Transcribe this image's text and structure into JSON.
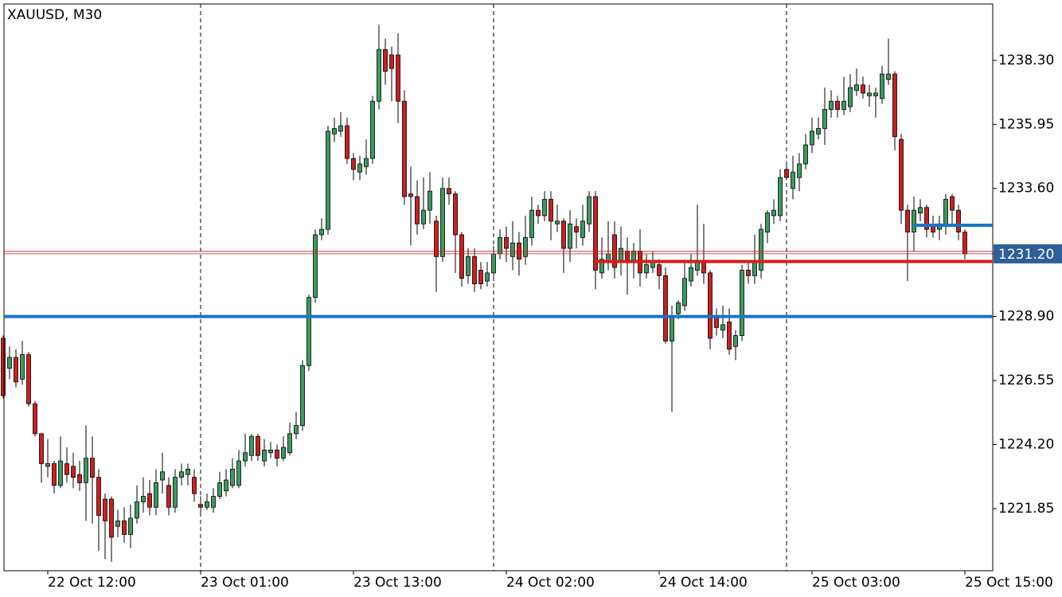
{
  "chart_data": {
    "type": "candlestick",
    "title": "XAUUSD, M30",
    "up_color": "#3c9a5f",
    "down_color": "#cc1f1f",
    "categories": [
      null,
      null,
      null,
      null,
      null,
      null,
      null,
      "22 Oct 12:00",
      null,
      null,
      null,
      null,
      null,
      null,
      null,
      null,
      null,
      null,
      null,
      null,
      null,
      null,
      null,
      null,
      null,
      null,
      null,
      null,
      null,
      null,
      null,
      "23 Oct 01:00",
      null,
      null,
      null,
      null,
      null,
      null,
      null,
      null,
      null,
      null,
      null,
      null,
      null,
      null,
      null,
      null,
      null,
      null,
      null,
      null,
      null,
      null,
      null,
      "23 Oct 13:00",
      null,
      null,
      null,
      null,
      null,
      null,
      null,
      null,
      null,
      null,
      null,
      null,
      null,
      null,
      null,
      null,
      null,
      null,
      null,
      null,
      null,
      null,
      null,
      "24 Oct 02:00",
      null,
      null,
      null,
      null,
      null,
      null,
      null,
      null,
      null,
      null,
      null,
      null,
      null,
      null,
      null,
      null,
      null,
      null,
      null,
      null,
      null,
      null,
      null,
      "24 Oct 14:00",
      null,
      null,
      null,
      null,
      null,
      null,
      null,
      null,
      null,
      null,
      null,
      null,
      null,
      null,
      null,
      null,
      null,
      null,
      null,
      null,
      null,
      null,
      null,
      "25 Oct 03:00",
      null,
      null,
      null,
      null,
      null,
      null,
      null,
      null,
      null,
      null,
      null,
      null,
      null,
      null,
      null,
      null,
      null,
      null,
      null,
      null,
      null,
      null,
      null,
      "25 Oct 15:00"
    ],
    "open": [
      1228.1,
      1227.0,
      1227.4,
      1226.6,
      1227.5,
      1225.7,
      1224.6,
      1223.4,
      1223.5,
      1222.7,
      1223.5,
      1223.4,
      1223.1,
      1222.8,
      1223.7,
      1223.0,
      1222.2,
      1222.2,
      1221.2,
      1221.4,
      1220.9,
      1221.5,
      1222.1,
      1222.4,
      1221.9,
      1222.9,
      1222.7,
      1221.9,
      1223.0,
      1223.1,
      1223.0,
      1222.0,
      1221.9,
      1221.9,
      1222.3,
      1222.5,
      1222.7,
      1222.7,
      1223.6,
      1223.8,
      1224.5,
      1223.6,
      1223.9,
      1224.0,
      1223.7,
      1223.9,
      1224.6,
      1224.9,
      1227.1,
      1229.6,
      1231.9,
      1232.1,
      1235.6,
      1235.7,
      1235.9,
      1234.7,
      1234.2,
      1234.4,
      1234.7,
      1236.8,
      1238.7,
      1238.5,
      1238.5,
      1236.8,
      1233.4,
      1233.3,
      1232.3,
      1232.8,
      1232.4,
      1231.1,
      1233.6,
      1233.4,
      1231.9,
      1230.4,
      1231.1,
      1230.6,
      1230.2,
      1230.5,
      1231.2,
      1231.8,
      1231.1,
      1231.6,
      1231.1,
      1231.8,
      1232.8,
      1232.6,
      1233.2,
      1232.3,
      1232.4,
      1231.4,
      1232.2,
      1231.8,
      1232.3,
      1233.3,
      1230.5,
      1230.9,
      1231.9,
      1230.9,
      1231.3,
      1230.9,
      1231.3,
      1230.5,
      1230.7,
      1230.8,
      1230.4,
      1228.0,
      1229.0,
      1229.3,
      1230.2,
      1230.6,
      1230.9,
      1230.5,
      1228.9,
      1228.4,
      1228.7,
      1227.8,
      1228.2,
      1230.6,
      1230.4,
      1230.6,
      1232.0,
      1232.6,
      1232.6,
      1234.3,
      1233.6,
      1234.0,
      1234.5,
      1235.2,
      1235.6,
      1235.8,
      1236.5,
      1236.8,
      1236.5,
      1236.6,
      1237.2,
      1237.4,
      1237.0,
      1237.0,
      1236.9,
      1237.6,
      1237.8,
      1235.4,
      1232.8,
      1232.0,
      1232.7,
      1232.9,
      1232.2,
      1232.1,
      1232.3,
      1233.3,
      1232.8,
      1232.0
    ],
    "high": [
      1228.2,
      1227.8,
      1227.7,
      1228.0,
      1227.6,
      1225.8,
      1224.6,
      1224.4,
      1223.6,
      1224.5,
      1224.1,
      1223.9,
      1223.6,
      1224.9,
      1224.5,
      1223.3,
      1222.4,
      1222.3,
      1221.8,
      1221.9,
      1222.0,
      1222.7,
      1223.0,
      1222.9,
      1223.3,
      1223.9,
      1223.0,
      1223.3,
      1223.5,
      1223.5,
      1223.3,
      1222.3,
      1222.4,
      1222.6,
      1223.2,
      1223.3,
      1223.7,
      1224.0,
      1224.6,
      1224.6,
      1224.6,
      1224.4,
      1224.3,
      1224.2,
      1224.5,
      1225.0,
      1225.4,
      1227.3,
      1229.7,
      1232.1,
      1232.5,
      1235.9,
      1236.2,
      1236.4,
      1236.2,
      1234.9,
      1234.8,
      1235.4,
      1237.0,
      1239.6,
      1239.1,
      1238.8,
      1239.3,
      1237.2,
      1234.4,
      1233.9,
      1234.0,
      1234.2,
      1232.6,
      1234.0,
      1234.0,
      1233.5,
      1232.0,
      1231.4,
      1231.4,
      1230.9,
      1230.9,
      1231.5,
      1232.1,
      1232.2,
      1232.4,
      1232.0,
      1232.6,
      1233.3,
      1233.0,
      1233.5,
      1233.5,
      1233.0,
      1232.5,
      1232.8,
      1232.5,
      1233.0,
      1233.5,
      1233.5,
      1231.8,
      1232.4,
      1232.4,
      1232.2,
      1231.8,
      1231.6,
      1232.1,
      1231.2,
      1231.3,
      1231.0,
      1230.7,
      1229.3,
      1229.5,
      1230.9,
      1231.2,
      1233.0,
      1232.3,
      1230.6,
      1229.2,
      1229.3,
      1229.2,
      1228.4,
      1230.8,
      1230.9,
      1231.9,
      1232.3,
      1232.8,
      1233.2,
      1234.3,
      1234.6,
      1234.8,
      1234.9,
      1235.6,
      1236.2,
      1236.2,
      1237.3,
      1237.2,
      1237.0,
      1237.7,
      1237.8,
      1238.0,
      1237.7,
      1237.4,
      1237.3,
      1238.1,
      1239.1,
      1237.9,
      1235.6,
      1233.0,
      1233.3,
      1233.2,
      1233.0,
      1232.6,
      1232.6,
      1233.4,
      1233.4,
      1233.0,
      1232.1
    ],
    "low": [
      1225.9,
      1226.6,
      1226.3,
      1226.4,
      1225.6,
      1224.5,
      1222.8,
      1223.0,
      1222.4,
      1222.6,
      1222.8,
      1222.6,
      1222.5,
      1221.4,
      1221.3,
      1220.3,
      1220.0,
      1219.9,
      1220.8,
      1220.6,
      1220.4,
      1221.3,
      1221.7,
      1221.6,
      1221.6,
      1222.4,
      1221.6,
      1221.7,
      1222.7,
      1222.7,
      1222.1,
      1221.6,
      1221.8,
      1221.7,
      1222.2,
      1222.3,
      1222.6,
      1222.6,
      1223.4,
      1223.6,
      1223.6,
      1223.4,
      1223.7,
      1223.4,
      1223.6,
      1223.8,
      1224.4,
      1224.7,
      1226.9,
      1229.4,
      1231.7,
      1231.9,
      1235.3,
      1235.5,
      1234.5,
      1233.9,
      1233.9,
      1234.1,
      1234.5,
      1236.5,
      1237.4,
      1236.8,
      1236.0,
      1233.0,
      1231.5,
      1231.9,
      1232.1,
      1232.3,
      1229.8,
      1230.9,
      1233.0,
      1230.5,
      1230.0,
      1230.1,
      1229.8,
      1229.9,
      1230.0,
      1230.2,
      1231.0,
      1230.9,
      1230.6,
      1230.4,
      1230.8,
      1231.5,
      1232.3,
      1232.4,
      1231.7,
      1232.0,
      1230.5,
      1230.9,
      1231.4,
      1231.5,
      1232.0,
      1229.9,
      1230.3,
      1230.6,
      1230.3,
      1230.4,
      1229.7,
      1230.3,
      1230.0,
      1230.3,
      1230.5,
      1229.9,
      1227.9,
      1225.4,
      1228.8,
      1229.1,
      1230.0,
      1230.4,
      1230.1,
      1227.7,
      1228.2,
      1228.1,
      1227.5,
      1227.3,
      1228.0,
      1230.1,
      1230.1,
      1230.3,
      1231.6,
      1232.3,
      1232.4,
      1233.9,
      1233.2,
      1233.5,
      1234.3,
      1234.9,
      1235.4,
      1235.2,
      1236.2,
      1236.2,
      1236.3,
      1236.4,
      1237.0,
      1236.9,
      1236.6,
      1236.2,
      1236.7,
      1237.4,
      1235.0,
      1232.3,
      1230.2,
      1231.3,
      1232.4,
      1231.8,
      1231.8,
      1231.7,
      1231.9,
      1232.3,
      1231.7,
      1231.0
    ],
    "close": [
      1226.0,
      1227.4,
      1226.5,
      1227.5,
      1225.7,
      1224.6,
      1223.5,
      1223.5,
      1222.7,
      1223.6,
      1223.1,
      1223.0,
      1222.8,
      1223.7,
      1223.0,
      1221.6,
      1221.4,
      1220.8,
      1221.4,
      1220.9,
      1221.5,
      1222.1,
      1222.3,
      1221.9,
      1222.8,
      1223.2,
      1221.9,
      1223.0,
      1223.2,
      1223.3,
      1222.4,
      1221.9,
      1222.1,
      1222.3,
      1222.8,
      1222.9,
      1223.3,
      1223.6,
      1223.9,
      1224.5,
      1223.8,
      1224.0,
      1224.0,
      1223.7,
      1224.1,
      1224.6,
      1224.9,
      1227.1,
      1229.6,
      1231.9,
      1232.1,
      1235.7,
      1235.8,
      1235.9,
      1234.7,
      1234.3,
      1234.5,
      1234.7,
      1236.8,
      1238.7,
      1237.9,
      1238.0,
      1236.8,
      1233.3,
      1233.3,
      1232.3,
      1232.8,
      1233.5,
      1231.1,
      1233.6,
      1233.4,
      1231.9,
      1230.3,
      1231.1,
      1230.1,
      1230.1,
      1230.5,
      1231.2,
      1231.8,
      1231.4,
      1231.6,
      1231.0,
      1231.8,
      1232.8,
      1232.6,
      1233.2,
      1232.4,
      1232.4,
      1231.4,
      1232.3,
      1232.0,
      1232.4,
      1233.3,
      1230.6,
      1231.0,
      1231.2,
      1230.7,
      1231.4,
      1230.9,
      1231.3,
      1230.5,
      1230.8,
      1230.9,
      1230.4,
      1228.0,
      1228.9,
      1229.4,
      1230.3,
      1230.7,
      1230.9,
      1230.5,
      1228.1,
      1228.5,
      1228.6,
      1227.7,
      1228.2,
      1230.6,
      1230.4,
      1230.9,
      1232.1,
      1232.7,
      1232.8,
      1234.0,
      1234.0,
      1234.2,
      1234.5,
      1235.2,
      1235.7,
      1235.8,
      1236.5,
      1236.8,
      1236.5,
      1236.8,
      1237.3,
      1237.4,
      1237.1,
      1237.1,
      1237.1,
      1237.8,
      1237.8,
      1235.5,
      1232.8,
      1232.0,
      1232.8,
      1232.9,
      1232.1,
      1232.0,
      1232.3,
      1233.2,
      1232.8,
      1232.0,
      1231.2
    ],
    "ylim": [
      1219.57,
      1240.37
    ],
    "yticks": [
      {
        "value": 1221.85,
        "label": "1221.85"
      },
      {
        "value": 1224.2,
        "label": "1224.20"
      },
      {
        "value": 1226.55,
        "label": "1226.55"
      },
      {
        "value": 1228.9,
        "label": "1228.90"
      },
      {
        "value": 1231.2,
        "label": "1231.20"
      },
      {
        "value": 1233.6,
        "label": "1233.60"
      },
      {
        "value": 1235.95,
        "label": "1235.95"
      },
      {
        "value": 1238.3,
        "label": "1238.30"
      }
    ],
    "levels": [
      {
        "value": 1228.9,
        "color": "#1a73c9"
      },
      {
        "value": 1230.92,
        "color": "#d91e18",
        "start": 93
      },
      {
        "value": 1232.25,
        "color": "#1a73c9",
        "start": 143
      }
    ],
    "ask": 1231.29,
    "last_price": {
      "value": 1231.2,
      "label": "1231.20"
    }
  }
}
